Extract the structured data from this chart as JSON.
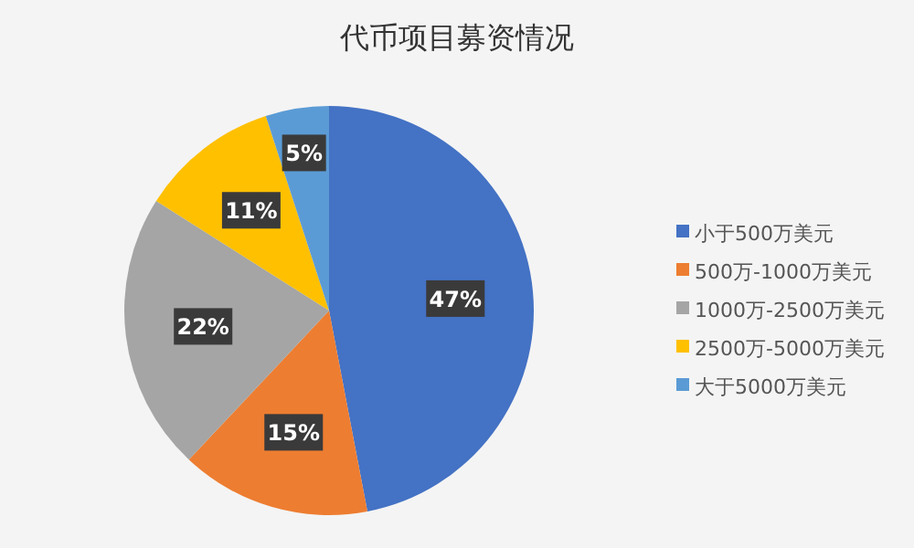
{
  "chart_data": {
    "type": "pie",
    "title": "代币项目募资情况",
    "categories": [
      "小于500万美元",
      "500万-1000万美元",
      "1000万-2500万美元",
      "2500万-5000万美元",
      "大于5000万美元"
    ],
    "values": [
      47,
      15,
      22,
      11,
      5
    ],
    "colors": [
      "#4472c4",
      "#ed7d31",
      "#a5a5a5",
      "#ffc000",
      "#5b9bd5"
    ],
    "value_labels": [
      "47%",
      "15%",
      "22%",
      "11%",
      "5%"
    ],
    "legend": "right"
  }
}
